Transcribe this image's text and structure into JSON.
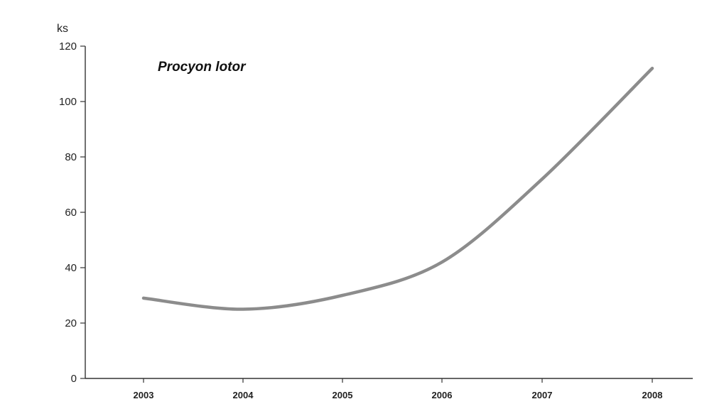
{
  "chart_data": {
    "type": "line",
    "title": "Procyon lotor",
    "ylabel": "ks",
    "xlabel": "",
    "categories": [
      "2003",
      "2004",
      "2005",
      "2006",
      "2007",
      "2008"
    ],
    "series": [
      {
        "values": [
          29,
          25,
          30,
          42,
          72,
          112
        ],
        "color": "#8c8c8c"
      }
    ],
    "ylim": [
      0,
      120
    ],
    "yticks": [
      "0",
      "20",
      "40",
      "60",
      "80",
      "100",
      "120"
    ],
    "grid": false,
    "legend": "none"
  }
}
